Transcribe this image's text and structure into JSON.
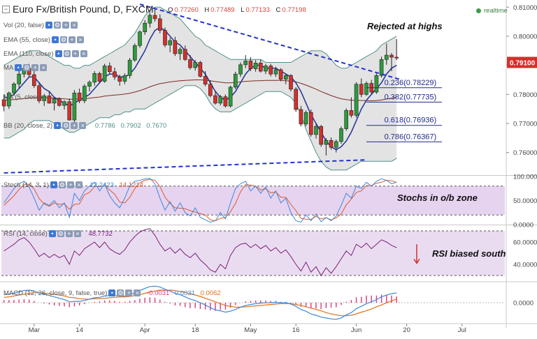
{
  "header": {
    "title": "Euro Fx/British Pound, D, FXCM",
    "ohlc": [
      {
        "k": "O",
        "v": "0.77260"
      },
      {
        "k": "H",
        "v": "0.77489"
      },
      {
        "k": "L",
        "v": "0.77133"
      },
      {
        "k": "C",
        "v": "0.77198"
      }
    ],
    "realtime": "realtime"
  },
  "indicators": {
    "vol": "Vol (20, false)",
    "ema55": "EMA (55, close)",
    "ema110": "EMA (110, close)",
    "ma": "MA",
    "ma2": "MA (5, close)",
    "bb": "BB (20, close, 2)",
    "bb_vals": [
      "0.7786",
      "0.7902",
      "0.7670"
    ],
    "stoch": "Stoch (14, 3, 1)",
    "stoch_vals": [
      "12.2423",
      "14.1214"
    ],
    "rsi": "RSI (14, close)",
    "rsi_val": "48.7732",
    "macd": "MACD (12, 26, close, 9, false, true)",
    "macd_vals": [
      "-0.0031",
      "0.0031",
      "0.0062"
    ]
  },
  "annotations": {
    "rejected": "Rejected at highs",
    "stochs": "Stochs in o/b zone",
    "rsi": "RSI biased south"
  },
  "colors": {
    "up": "#2e9a3e",
    "down": "#d4302b",
    "bb_fill": "#dadada",
    "bb_line": "#4f8f8a",
    "ma_line": "#2a3a9c",
    "ema_line": "#7a2a22",
    "trend": "#2233cc",
    "fib": "#1f2b8a",
    "stoch_k": "#3f88d8",
    "stoch_d": "#e05a2a",
    "stoch_band": "#e6d3f0",
    "rsi": "#7a1f7a",
    "rsi_band": "#eadcf0",
    "macd_line": "#3f88d8",
    "macd_signal": "#e0701a",
    "macd_hist": "#d63a7a",
    "price_badge": "#d4302b"
  },
  "price_badge": "0.79100",
  "chart_data": {
    "type": "candlestick",
    "title": "Euro Fx/British Pound, D, FXCM",
    "price_axis": {
      "ticks": [
        "0.81000",
        "0.80000",
        "0.79000",
        "0.78000",
        "0.77000",
        "0.76000"
      ],
      "ylim": [
        0.7525,
        0.8115
      ]
    },
    "stoch_axis": {
      "ticks": [
        "100.0000",
        "50.0000",
        "0.0000"
      ],
      "ylim": [
        0,
        100
      ],
      "band": [
        20,
        80
      ]
    },
    "rsi_axis": {
      "ticks": [
        "60.0000",
        "40.0000"
      ],
      "ylim": [
        25,
        75
      ],
      "band": [
        30,
        70
      ]
    },
    "macd_axis": {
      "ticks": [
        "0.0000"
      ],
      "ylim": [
        -0.0045,
        0.0045
      ]
    },
    "x_ticks": [
      {
        "label": "Mar",
        "bar": 6
      },
      {
        "label": "14",
        "bar": 15
      },
      {
        "label": "Apr",
        "bar": 28
      },
      {
        "label": "18",
        "bar": 38
      },
      {
        "label": "May",
        "bar": 49
      },
      {
        "label": "16",
        "bar": 58
      },
      {
        "label": "Jun",
        "bar": 70
      },
      {
        "label": "20",
        "bar": 80
      },
      {
        "label": "Jul",
        "bar": 91
      }
    ],
    "bars_total": 100,
    "candles": [
      [
        0.7782,
        0.78,
        0.7742,
        0.776
      ],
      [
        0.776,
        0.781,
        0.775,
        0.7805
      ],
      [
        0.7805,
        0.7842,
        0.7795,
        0.7836
      ],
      [
        0.7836,
        0.788,
        0.782,
        0.787
      ],
      [
        0.787,
        0.7898,
        0.7858,
        0.789
      ],
      [
        0.789,
        0.7905,
        0.786,
        0.7868
      ],
      [
        0.7868,
        0.788,
        0.7822,
        0.783
      ],
      [
        0.783,
        0.7842,
        0.777,
        0.7778
      ],
      [
        0.7778,
        0.7802,
        0.776,
        0.7795
      ],
      [
        0.7795,
        0.7812,
        0.7768,
        0.777
      ],
      [
        0.777,
        0.779,
        0.7745,
        0.7785
      ],
      [
        0.7785,
        0.779,
        0.7758,
        0.7762
      ],
      [
        0.7762,
        0.778,
        0.7748,
        0.7775
      ],
      [
        0.7775,
        0.7786,
        0.771,
        0.7712
      ],
      [
        0.7712,
        0.7815,
        0.7705,
        0.7805
      ],
      [
        0.7805,
        0.782,
        0.777,
        0.7778
      ],
      [
        0.7778,
        0.7835,
        0.777,
        0.7828
      ],
      [
        0.7828,
        0.7848,
        0.781,
        0.7842
      ],
      [
        0.7842,
        0.788,
        0.783,
        0.7872
      ],
      [
        0.7872,
        0.7878,
        0.784,
        0.7845
      ],
      [
        0.7845,
        0.7905,
        0.784,
        0.7898
      ],
      [
        0.7898,
        0.791,
        0.787,
        0.7878
      ],
      [
        0.7878,
        0.7892,
        0.785,
        0.786
      ],
      [
        0.786,
        0.7868,
        0.783,
        0.7845
      ],
      [
        0.7845,
        0.7872,
        0.7835,
        0.7865
      ],
      [
        0.7865,
        0.7925,
        0.7855,
        0.7918
      ],
      [
        0.7918,
        0.7975,
        0.7912,
        0.7968
      ],
      [
        0.7968,
        0.802,
        0.796,
        0.8015
      ],
      [
        0.8015,
        0.8055,
        0.8005,
        0.8045
      ],
      [
        0.8045,
        0.808,
        0.803,
        0.8072
      ],
      [
        0.8072,
        0.8095,
        0.805,
        0.806
      ],
      [
        0.806,
        0.8075,
        0.801,
        0.802
      ],
      [
        0.802,
        0.803,
        0.7962,
        0.797
      ],
      [
        0.797,
        0.7995,
        0.7945,
        0.7985
      ],
      [
        0.7985,
        0.7998,
        0.7932,
        0.794
      ],
      [
        0.794,
        0.7962,
        0.7918,
        0.7955
      ],
      [
        0.7955,
        0.7968,
        0.7915,
        0.792
      ],
      [
        0.792,
        0.7935,
        0.7885,
        0.7892
      ],
      [
        0.7892,
        0.7918,
        0.7882,
        0.791
      ],
      [
        0.791,
        0.7915,
        0.7858,
        0.7862
      ],
      [
        0.7862,
        0.788,
        0.7828,
        0.7835
      ],
      [
        0.7835,
        0.7848,
        0.779,
        0.7796
      ],
      [
        0.7796,
        0.7812,
        0.7765,
        0.777
      ],
      [
        0.777,
        0.7798,
        0.7762,
        0.7792
      ],
      [
        0.7792,
        0.78,
        0.7755,
        0.776
      ],
      [
        0.776,
        0.783,
        0.7755,
        0.7825
      ],
      [
        0.7825,
        0.7878,
        0.7818,
        0.787
      ],
      [
        0.787,
        0.791,
        0.786,
        0.7902
      ],
      [
        0.7902,
        0.7935,
        0.789,
        0.7915
      ],
      [
        0.7915,
        0.7928,
        0.788,
        0.7888
      ],
      [
        0.7888,
        0.7918,
        0.7878,
        0.7908
      ],
      [
        0.7908,
        0.792,
        0.7875,
        0.788
      ],
      [
        0.788,
        0.7905,
        0.787,
        0.7898
      ],
      [
        0.7898,
        0.7905,
        0.7862,
        0.787
      ],
      [
        0.787,
        0.7895,
        0.786,
        0.7885
      ],
      [
        0.7885,
        0.789,
        0.7845,
        0.7852
      ],
      [
        0.7852,
        0.7872,
        0.7835,
        0.7865
      ],
      [
        0.7865,
        0.787,
        0.781,
        0.7818
      ],
      [
        0.7818,
        0.7825,
        0.774,
        0.7748
      ],
      [
        0.7748,
        0.776,
        0.769,
        0.7698
      ],
      [
        0.7698,
        0.7745,
        0.769,
        0.7738
      ],
      [
        0.7738,
        0.7748,
        0.7655,
        0.7662
      ],
      [
        0.7662,
        0.77,
        0.7648,
        0.769
      ],
      [
        0.769,
        0.7695,
        0.762,
        0.7628
      ],
      [
        0.7628,
        0.765,
        0.759,
        0.7642
      ],
      [
        0.7642,
        0.7652,
        0.761,
        0.7618
      ],
      [
        0.7618,
        0.7645,
        0.76,
        0.7638
      ],
      [
        0.7638,
        0.769,
        0.763,
        0.7682
      ],
      [
        0.7682,
        0.7752,
        0.7675,
        0.7745
      ],
      [
        0.7745,
        0.779,
        0.772,
        0.7728
      ],
      [
        0.7728,
        0.7842,
        0.772,
        0.7835
      ],
      [
        0.7835,
        0.7855,
        0.779,
        0.78
      ],
      [
        0.78,
        0.7845,
        0.7795,
        0.7838
      ],
      [
        0.7838,
        0.785,
        0.78,
        0.7808
      ],
      [
        0.7808,
        0.7872,
        0.7802,
        0.7865
      ],
      [
        0.7865,
        0.793,
        0.7858,
        0.792
      ],
      [
        0.792,
        0.7975,
        0.7902,
        0.7935
      ],
      [
        0.7935,
        0.7942,
        0.788,
        0.7928
      ],
      [
        0.7928,
        0.799,
        0.7918,
        0.7925
      ]
    ],
    "bb_upper": [
      0.79,
      0.791,
      0.792,
      0.793,
      0.794,
      0.795,
      0.795,
      0.795,
      0.794,
      0.793,
      0.792,
      0.791,
      0.79,
      0.79,
      0.789,
      0.789,
      0.79,
      0.79,
      0.791,
      0.792,
      0.793,
      0.794,
      0.795,
      0.796,
      0.797,
      0.799,
      0.801,
      0.804,
      0.807,
      0.809,
      0.81,
      0.81,
      0.809,
      0.808,
      0.807,
      0.806,
      0.804,
      0.802,
      0.8,
      0.799,
      0.797,
      0.796,
      0.795,
      0.794,
      0.793,
      0.792,
      0.792,
      0.792,
      0.792,
      0.792,
      0.792,
      0.792,
      0.791,
      0.791,
      0.791,
      0.791,
      0.791,
      0.791,
      0.792,
      0.793,
      0.794,
      0.795,
      0.795,
      0.795,
      0.794,
      0.792,
      0.79,
      0.789,
      0.789,
      0.79,
      0.791,
      0.792,
      0.793,
      0.794,
      0.795,
      0.797,
      0.798,
      0.799,
      0.8
    ],
    "bb_lower": [
      0.765,
      0.765,
      0.766,
      0.767,
      0.768,
      0.77,
      0.771,
      0.771,
      0.771,
      0.771,
      0.77,
      0.769,
      0.768,
      0.767,
      0.767,
      0.768,
      0.769,
      0.77,
      0.771,
      0.772,
      0.772,
      0.772,
      0.773,
      0.773,
      0.774,
      0.774,
      0.775,
      0.775,
      0.775,
      0.776,
      0.777,
      0.778,
      0.779,
      0.78,
      0.781,
      0.782,
      0.783,
      0.783,
      0.783,
      0.782,
      0.78,
      0.777,
      0.775,
      0.774,
      0.774,
      0.774,
      0.775,
      0.776,
      0.777,
      0.778,
      0.779,
      0.78,
      0.781,
      0.781,
      0.781,
      0.781,
      0.78,
      0.779,
      0.777,
      0.773,
      0.768,
      0.764,
      0.76,
      0.757,
      0.755,
      0.754,
      0.754,
      0.754,
      0.754,
      0.755,
      0.756,
      0.757,
      0.757,
      0.757,
      0.757,
      0.757,
      0.757,
      0.757,
      0.758
    ],
    "ma": [
      0.779,
      0.779,
      0.78,
      0.782,
      0.784,
      0.786,
      0.786,
      0.784,
      0.782,
      0.781,
      0.779,
      0.778,
      0.777,
      0.776,
      0.777,
      0.778,
      0.779,
      0.78,
      0.782,
      0.784,
      0.786,
      0.787,
      0.787,
      0.786,
      0.786,
      0.787,
      0.789,
      0.792,
      0.795,
      0.799,
      0.802,
      0.803,
      0.802,
      0.8,
      0.798,
      0.797,
      0.795,
      0.793,
      0.791,
      0.789,
      0.787,
      0.784,
      0.781,
      0.779,
      0.778,
      0.779,
      0.781,
      0.784,
      0.787,
      0.789,
      0.79,
      0.79,
      0.789,
      0.789,
      0.789,
      0.788,
      0.787,
      0.786,
      0.784,
      0.781,
      0.777,
      0.773,
      0.77,
      0.767,
      0.764,
      0.762,
      0.761,
      0.762,
      0.764,
      0.767,
      0.771,
      0.775,
      0.778,
      0.78,
      0.782,
      0.784,
      0.787,
      0.789,
      0.79
    ],
    "ema": [
      0.778,
      0.7781,
      0.7782,
      0.7784,
      0.7786,
      0.7788,
      0.7789,
      0.7789,
      0.7789,
      0.7788,
      0.7787,
      0.7786,
      0.7785,
      0.7783,
      0.7784,
      0.7784,
      0.7785,
      0.7787,
      0.7789,
      0.7791,
      0.7794,
      0.7796,
      0.7798,
      0.7799,
      0.7801,
      0.7804,
      0.7808,
      0.7813,
      0.7819,
      0.7826,
      0.7832,
      0.7837,
      0.784,
      0.7843,
      0.7845,
      0.7847,
      0.7848,
      0.7849,
      0.785,
      0.785,
      0.7849,
      0.7847,
      0.7844,
      0.7842,
      0.784,
      0.784,
      0.7841,
      0.7843,
      0.7845,
      0.7846,
      0.7847,
      0.7847,
      0.7848,
      0.7848,
      0.7848,
      0.7848,
      0.7847,
      0.7846,
      0.7843,
      0.7838,
      0.7832,
      0.7825,
      0.7818,
      0.781,
      0.7803,
      0.7796,
      0.779,
      0.7785,
      0.7782,
      0.778,
      0.778,
      0.7779,
      0.7779,
      0.7778,
      0.7779,
      0.7781,
      0.7784,
      0.7787,
      0.779
    ],
    "trendlines": [
      {
        "from": [
          27,
          0.811
        ],
        "to": [
          79,
          0.785
        ]
      },
      {
        "from": [
          0,
          0.753
        ],
        "to": [
          72,
          0.7575
        ]
      }
    ],
    "fib_levels": [
      {
        "label": "0.236(0.78229)",
        "value": 0.78229
      },
      {
        "label": "0.382(0.77735)",
        "value": 0.77735
      },
      {
        "label": "0.618(0.76936)",
        "value": 0.76936
      },
      {
        "label": "0.786(0.76367)",
        "value": 0.76367
      }
    ],
    "stoch_k": [
      45,
      60,
      75,
      85,
      90,
      78,
      55,
      30,
      45,
      40,
      50,
      35,
      45,
      15,
      65,
      50,
      70,
      80,
      88,
      70,
      85,
      60,
      45,
      35,
      55,
      80,
      90,
      92,
      95,
      96,
      85,
      55,
      30,
      48,
      28,
      45,
      25,
      18,
      35,
      15,
      10,
      5,
      8,
      25,
      12,
      45,
      75,
      85,
      90,
      70,
      80,
      65,
      78,
      55,
      70,
      45,
      55,
      25,
      8,
      5,
      20,
      8,
      22,
      6,
      15,
      8,
      18,
      40,
      65,
      55,
      80,
      75,
      88,
      80,
      90,
      95,
      92,
      85,
      88
    ],
    "stoch_d": [
      40,
      50,
      60,
      73,
      83,
      84,
      74,
      54,
      43,
      38,
      45,
      42,
      43,
      32,
      42,
      43,
      62,
      67,
      79,
      79,
      81,
      72,
      63,
      47,
      45,
      57,
      75,
      87,
      92,
      94,
      92,
      79,
      57,
      44,
      35,
      34,
      33,
      29,
      26,
      23,
      20,
      10,
      8,
      13,
      15,
      27,
      44,
      68,
      83,
      82,
      80,
      72,
      74,
      66,
      68,
      57,
      57,
      42,
      29,
      13,
      11,
      11,
      17,
      12,
      14,
      10,
      14,
      22,
      41,
      53,
      67,
      70,
      81,
      81,
      86,
      88,
      92,
      91,
      88
    ],
    "rsi": [
      52,
      55,
      58,
      62,
      64,
      60,
      54,
      47,
      50,
      46,
      49,
      46,
      48,
      40,
      52,
      48,
      54,
      57,
      60,
      55,
      60,
      54,
      51,
      49,
      53,
      60,
      65,
      69,
      71,
      72,
      66,
      58,
      52,
      55,
      50,
      54,
      49,
      46,
      50,
      44,
      40,
      35,
      33,
      40,
      36,
      48,
      55,
      58,
      59,
      55,
      58,
      54,
      57,
      52,
      55,
      50,
      53,
      47,
      40,
      34,
      42,
      33,
      38,
      30,
      37,
      32,
      38,
      45,
      52,
      48,
      58,
      55,
      59,
      54,
      58,
      62,
      60,
      57,
      55
    ],
    "macd": [
      0.0018,
      0.0019,
      0.0021,
      0.0024,
      0.0027,
      0.0028,
      0.0026,
      0.0022,
      0.0019,
      0.0016,
      0.0013,
      0.001,
      0.0007,
      0.0002,
      0.0003,
      0.0003,
      0.0005,
      0.0008,
      0.0011,
      0.0012,
      0.0015,
      0.0016,
      0.0016,
      0.0015,
      0.0015,
      0.0018,
      0.0022,
      0.0027,
      0.0032,
      0.0036,
      0.0037,
      0.0035,
      0.003,
      0.0026,
      0.0021,
      0.0018,
      0.0013,
      0.0008,
      0.0005,
      0.0,
      -0.0005,
      -0.0011,
      -0.0016,
      -0.0018,
      -0.0021,
      -0.0019,
      -0.0015,
      -0.001,
      -0.0006,
      -0.0004,
      -0.0002,
      -0.0001,
      0.0,
      0.0,
      0.0001,
      0.0,
      0.0,
      -0.0003,
      -0.0008,
      -0.0015,
      -0.0019,
      -0.0025,
      -0.0028,
      -0.0032,
      -0.0034,
      -0.0036,
      -0.0037,
      -0.0034,
      -0.0027,
      -0.0022,
      -0.0013,
      -0.0008,
      -0.0002,
      0.0002,
      0.0007,
      0.0013,
      0.0017,
      0.002,
      0.0022
    ],
    "macd_signal": [
      0.0012,
      0.0013,
      0.0015,
      0.0017,
      0.0019,
      0.0021,
      0.0022,
      0.0022,
      0.0021,
      0.002,
      0.0019,
      0.0017,
      0.0015,
      0.0012,
      0.0011,
      0.0009,
      0.0008,
      0.0008,
      0.0009,
      0.0009,
      0.001,
      0.0011,
      0.0012,
      0.0013,
      0.0013,
      0.0014,
      0.0016,
      0.0018,
      0.0021,
      0.0024,
      0.0026,
      0.0028,
      0.0028,
      0.0028,
      0.0027,
      0.0025,
      0.0023,
      0.002,
      0.0017,
      0.0014,
      0.001,
      0.0006,
      0.0002,
      -0.0002,
      -0.0006,
      -0.0008,
      -0.001,
      -0.001,
      -0.0009,
      -0.0008,
      -0.0007,
      -0.0006,
      -0.0005,
      -0.0004,
      -0.0003,
      -0.0002,
      -0.0002,
      -0.0002,
      -0.0004,
      -0.0006,
      -0.0009,
      -0.0012,
      -0.0015,
      -0.0018,
      -0.0022,
      -0.0025,
      -0.0027,
      -0.0029,
      -0.0029,
      -0.0028,
      -0.0025,
      -0.0021,
      -0.0018,
      -0.0014,
      -0.0009,
      -0.0005,
      0.0,
      0.0004,
      0.0008
    ]
  }
}
